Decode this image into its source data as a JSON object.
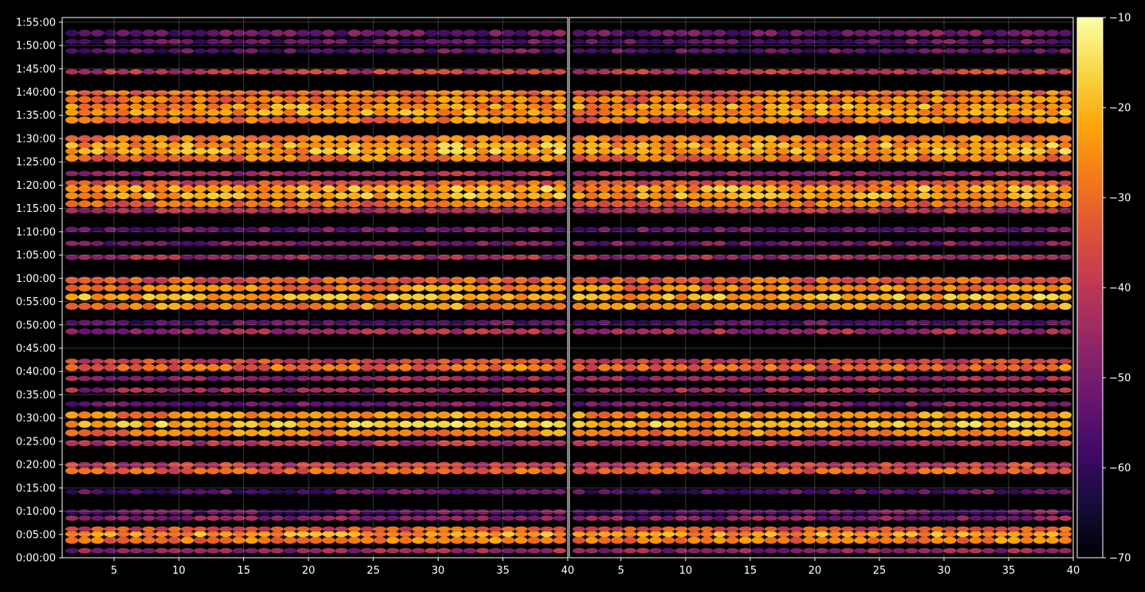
{
  "chart_data": {
    "type": "heatmap",
    "title": "",
    "xlabel": "",
    "ylabel": "",
    "panels": [
      {
        "xlim": [
          1,
          40
        ],
        "xticks": [
          5,
          10,
          15,
          20,
          25,
          30,
          35,
          40
        ]
      },
      {
        "xlim": [
          1,
          40
        ],
        "xticks": [
          5,
          10,
          15,
          20,
          25,
          30,
          35,
          40
        ]
      }
    ],
    "ylim_seconds": [
      0,
      6960
    ],
    "yticks": [
      {
        "seconds": 0,
        "label": "0:00:00"
      },
      {
        "seconds": 300,
        "label": "0:05:00"
      },
      {
        "seconds": 600,
        "label": "0:10:00"
      },
      {
        "seconds": 900,
        "label": "0:15:00"
      },
      {
        "seconds": 1200,
        "label": "0:20:00"
      },
      {
        "seconds": 1500,
        "label": "0:25:00"
      },
      {
        "seconds": 1800,
        "label": "0:30:00"
      },
      {
        "seconds": 2100,
        "label": "0:35:00"
      },
      {
        "seconds": 2400,
        "label": "0:40:00"
      },
      {
        "seconds": 2700,
        "label": "0:45:00"
      },
      {
        "seconds": 3000,
        "label": "0:50:00"
      },
      {
        "seconds": 3300,
        "label": "0:55:00"
      },
      {
        "seconds": 3600,
        "label": "1:00:00"
      },
      {
        "seconds": 3900,
        "label": "1:05:00"
      },
      {
        "seconds": 4200,
        "label": "1:10:00"
      },
      {
        "seconds": 4500,
        "label": "1:15:00"
      },
      {
        "seconds": 4800,
        "label": "1:20:00"
      },
      {
        "seconds": 5100,
        "label": "1:25:00"
      },
      {
        "seconds": 5400,
        "label": "1:30:00"
      },
      {
        "seconds": 5700,
        "label": "1:35:00"
      },
      {
        "seconds": 6000,
        "label": "1:40:00"
      },
      {
        "seconds": 6300,
        "label": "1:45:00"
      },
      {
        "seconds": 6600,
        "label": "1:50:00"
      },
      {
        "seconds": 6900,
        "label": "1:55:00"
      }
    ],
    "colorbar": {
      "colormap": "inferno",
      "range": [
        -70,
        -10
      ],
      "ticks": [
        {
          "value": -10,
          "label": "−10"
        },
        {
          "value": -20,
          "label": "−20"
        },
        {
          "value": -30,
          "label": "−30"
        },
        {
          "value": -40,
          "label": "−40"
        },
        {
          "value": -50,
          "label": "−50"
        },
        {
          "value": -60,
          "label": "−60"
        },
        {
          "value": -70,
          "label": "−70"
        }
      ]
    },
    "bands": [
      {
        "start_s": 60,
        "end_s": 120,
        "level": -48
      },
      {
        "start_s": 180,
        "end_s": 270,
        "level": -30
      },
      {
        "start_s": 270,
        "end_s": 340,
        "level": -26
      },
      {
        "start_s": 340,
        "end_s": 400,
        "level": -36
      },
      {
        "start_s": 480,
        "end_s": 540,
        "level": -50
      },
      {
        "start_s": 560,
        "end_s": 620,
        "level": -55
      },
      {
        "start_s": 820,
        "end_s": 880,
        "level": -56
      },
      {
        "start_s": 1080,
        "end_s": 1160,
        "level": -34
      },
      {
        "start_s": 1160,
        "end_s": 1230,
        "level": -40
      },
      {
        "start_s": 1440,
        "end_s": 1510,
        "level": -44
      },
      {
        "start_s": 1560,
        "end_s": 1660,
        "level": -28
      },
      {
        "start_s": 1660,
        "end_s": 1780,
        "level": -22
      },
      {
        "start_s": 1780,
        "end_s": 1900,
        "level": -27
      },
      {
        "start_s": 1950,
        "end_s": 2010,
        "level": -52
      },
      {
        "start_s": 2130,
        "end_s": 2190,
        "level": -46
      },
      {
        "start_s": 2280,
        "end_s": 2340,
        "level": -48
      },
      {
        "start_s": 2400,
        "end_s": 2500,
        "level": -32
      },
      {
        "start_s": 2500,
        "end_s": 2560,
        "level": -38
      },
      {
        "start_s": 2880,
        "end_s": 2950,
        "level": -46
      },
      {
        "start_s": 3000,
        "end_s": 3060,
        "level": -56
      },
      {
        "start_s": 3180,
        "end_s": 3300,
        "level": -27
      },
      {
        "start_s": 3300,
        "end_s": 3420,
        "level": -23
      },
      {
        "start_s": 3420,
        "end_s": 3530,
        "level": -28
      },
      {
        "start_s": 3530,
        "end_s": 3620,
        "level": -34
      },
      {
        "start_s": 3840,
        "end_s": 3900,
        "level": -46
      },
      {
        "start_s": 4020,
        "end_s": 4080,
        "level": -52
      },
      {
        "start_s": 4200,
        "end_s": 4260,
        "level": -54
      },
      {
        "start_s": 4440,
        "end_s": 4500,
        "level": -44
      },
      {
        "start_s": 4500,
        "end_s": 4620,
        "level": -32
      },
      {
        "start_s": 4620,
        "end_s": 4800,
        "level": -24
      },
      {
        "start_s": 4800,
        "end_s": 4860,
        "level": -36
      },
      {
        "start_s": 4920,
        "end_s": 4980,
        "level": -46
      },
      {
        "start_s": 5100,
        "end_s": 5200,
        "level": -30
      },
      {
        "start_s": 5200,
        "end_s": 5350,
        "level": -24
      },
      {
        "start_s": 5350,
        "end_s": 5450,
        "level": -28
      },
      {
        "start_s": 5580,
        "end_s": 5700,
        "level": -30
      },
      {
        "start_s": 5700,
        "end_s": 5850,
        "level": -26
      },
      {
        "start_s": 5850,
        "end_s": 5960,
        "level": -30
      },
      {
        "start_s": 5960,
        "end_s": 6020,
        "level": -32
      },
      {
        "start_s": 6230,
        "end_s": 6290,
        "level": -42
      },
      {
        "start_s": 6500,
        "end_s": 6560,
        "level": -56
      },
      {
        "start_s": 6620,
        "end_s": 6680,
        "level": -56
      },
      {
        "start_s": 6720,
        "end_s": 6800,
        "level": -54
      }
    ]
  }
}
